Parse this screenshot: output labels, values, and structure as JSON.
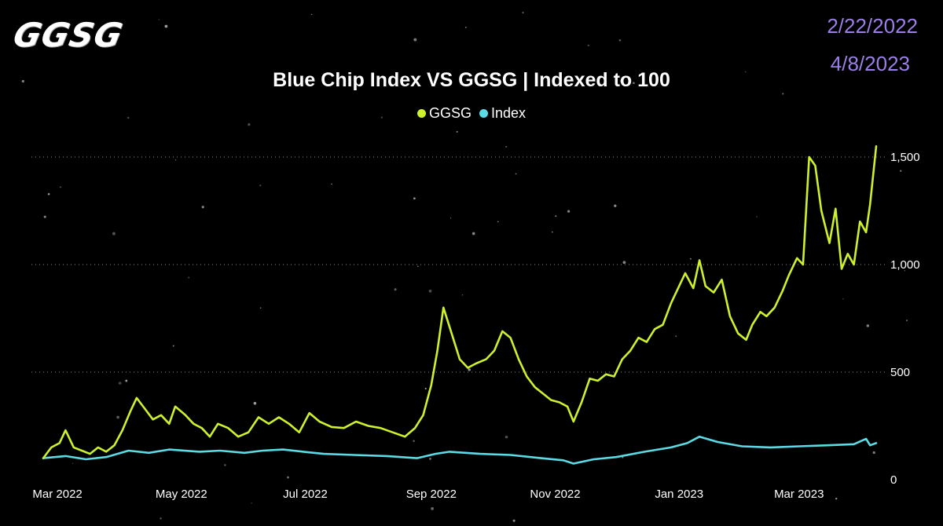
{
  "logo": {
    "text": "GGSG"
  },
  "date_range": {
    "start": "2/22/2022",
    "end": "4/8/2023"
  },
  "colors": {
    "ggsg": "#cdf22b",
    "index": "#5bdbe5",
    "dates": "#9b7fe6",
    "background": "#000000",
    "grid": "#8a8a8a"
  },
  "chart_data": {
    "type": "line",
    "title": "Blue Chip Index VS GGSG | Indexed to 100",
    "xlabel": "",
    "ylabel": "",
    "ylim": [
      0,
      1500
    ],
    "y_ticks": [
      0,
      500,
      1000,
      1500
    ],
    "y_tick_labels": [
      "0",
      "500",
      "1,000",
      "1,500"
    ],
    "x_ticks": [
      "2022-03-01",
      "2022-05-01",
      "2022-07-01",
      "2022-09-01",
      "2022-11-01",
      "2023-01-01",
      "2023-03-01"
    ],
    "x_tick_labels": [
      "Mar 2022",
      "May 2022",
      "Jul 2022",
      "Sep 2022",
      "Nov 2022",
      "Jan 2023",
      "Mar 2023"
    ],
    "x_range": [
      "2022-02-22",
      "2023-04-08"
    ],
    "grid": "horizontal dotted",
    "legend_position": "top-center",
    "series": [
      {
        "name": "GGSG",
        "color": "#cdf22b",
        "points": [
          [
            "2022-02-22",
            100
          ],
          [
            "2022-02-26",
            150
          ],
          [
            "2022-03-02",
            170
          ],
          [
            "2022-03-05",
            230
          ],
          [
            "2022-03-09",
            150
          ],
          [
            "2022-03-13",
            135
          ],
          [
            "2022-03-17",
            120
          ],
          [
            "2022-03-21",
            150
          ],
          [
            "2022-03-25",
            130
          ],
          [
            "2022-03-29",
            160
          ],
          [
            "2022-04-02",
            230
          ],
          [
            "2022-04-06",
            320
          ],
          [
            "2022-04-09",
            380
          ],
          [
            "2022-04-13",
            330
          ],
          [
            "2022-04-17",
            280
          ],
          [
            "2022-04-21",
            300
          ],
          [
            "2022-04-25",
            260
          ],
          [
            "2022-04-28",
            340
          ],
          [
            "2022-05-03",
            300
          ],
          [
            "2022-05-07",
            260
          ],
          [
            "2022-05-11",
            240
          ],
          [
            "2022-05-15",
            200
          ],
          [
            "2022-05-19",
            260
          ],
          [
            "2022-05-24",
            240
          ],
          [
            "2022-05-29",
            200
          ],
          [
            "2022-06-03",
            220
          ],
          [
            "2022-06-08",
            290
          ],
          [
            "2022-06-13",
            260
          ],
          [
            "2022-06-18",
            290
          ],
          [
            "2022-06-23",
            260
          ],
          [
            "2022-06-28",
            220
          ],
          [
            "2022-07-03",
            310
          ],
          [
            "2022-07-08",
            270
          ],
          [
            "2022-07-14",
            245
          ],
          [
            "2022-07-20",
            240
          ],
          [
            "2022-07-26",
            270
          ],
          [
            "2022-08-01",
            250
          ],
          [
            "2022-08-07",
            240
          ],
          [
            "2022-08-13",
            220
          ],
          [
            "2022-08-19",
            200
          ],
          [
            "2022-08-24",
            240
          ],
          [
            "2022-08-28",
            300
          ],
          [
            "2022-09-01",
            440
          ],
          [
            "2022-09-04",
            600
          ],
          [
            "2022-09-07",
            800
          ],
          [
            "2022-09-11",
            680
          ],
          [
            "2022-09-15",
            560
          ],
          [
            "2022-09-19",
            520
          ],
          [
            "2022-09-23",
            540
          ],
          [
            "2022-09-28",
            560
          ],
          [
            "2022-10-02",
            600
          ],
          [
            "2022-10-06",
            690
          ],
          [
            "2022-10-10",
            660
          ],
          [
            "2022-10-14",
            560
          ],
          [
            "2022-10-18",
            480
          ],
          [
            "2022-10-22",
            430
          ],
          [
            "2022-10-26",
            400
          ],
          [
            "2022-10-30",
            370
          ],
          [
            "2022-11-03",
            360
          ],
          [
            "2022-11-07",
            340
          ],
          [
            "2022-11-10",
            270
          ],
          [
            "2022-11-14",
            360
          ],
          [
            "2022-11-18",
            470
          ],
          [
            "2022-11-22",
            460
          ],
          [
            "2022-11-26",
            490
          ],
          [
            "2022-11-30",
            480
          ],
          [
            "2022-12-04",
            560
          ],
          [
            "2022-12-08",
            600
          ],
          [
            "2022-12-12",
            660
          ],
          [
            "2022-12-16",
            640
          ],
          [
            "2022-12-20",
            700
          ],
          [
            "2022-12-24",
            720
          ],
          [
            "2022-12-28",
            820
          ],
          [
            "2023-01-01",
            900
          ],
          [
            "2023-01-04",
            960
          ],
          [
            "2023-01-08",
            890
          ],
          [
            "2023-01-11",
            1020
          ],
          [
            "2023-01-14",
            900
          ],
          [
            "2023-01-18",
            870
          ],
          [
            "2023-01-22",
            930
          ],
          [
            "2023-01-26",
            760
          ],
          [
            "2023-01-30",
            680
          ],
          [
            "2023-02-03",
            650
          ],
          [
            "2023-02-06",
            720
          ],
          [
            "2023-02-10",
            780
          ],
          [
            "2023-02-13",
            760
          ],
          [
            "2023-02-17",
            800
          ],
          [
            "2023-02-21",
            880
          ],
          [
            "2023-02-24",
            950
          ],
          [
            "2023-02-28",
            1030
          ],
          [
            "2023-03-03",
            1000
          ],
          [
            "2023-03-06",
            1500
          ],
          [
            "2023-03-09",
            1460
          ],
          [
            "2023-03-12",
            1250
          ],
          [
            "2023-03-16",
            1100
          ],
          [
            "2023-03-19",
            1260
          ],
          [
            "2023-03-22",
            980
          ],
          [
            "2023-03-25",
            1050
          ],
          [
            "2023-03-28",
            1000
          ],
          [
            "2023-03-31",
            1200
          ],
          [
            "2023-04-03",
            1150
          ],
          [
            "2023-04-05",
            1280
          ],
          [
            "2023-04-08",
            1550
          ]
        ]
      },
      {
        "name": "Index",
        "color": "#5bdbe5",
        "points": [
          [
            "2022-02-22",
            100
          ],
          [
            "2022-03-05",
            110
          ],
          [
            "2022-03-15",
            95
          ],
          [
            "2022-03-25",
            105
          ],
          [
            "2022-04-05",
            135
          ],
          [
            "2022-04-15",
            125
          ],
          [
            "2022-04-25",
            140
          ],
          [
            "2022-05-10",
            130
          ],
          [
            "2022-05-20",
            135
          ],
          [
            "2022-06-01",
            125
          ],
          [
            "2022-06-10",
            135
          ],
          [
            "2022-06-20",
            140
          ],
          [
            "2022-06-30",
            130
          ],
          [
            "2022-07-10",
            120
          ],
          [
            "2022-07-25",
            115
          ],
          [
            "2022-08-10",
            110
          ],
          [
            "2022-08-25",
            100
          ],
          [
            "2022-09-03",
            120
          ],
          [
            "2022-09-10",
            130
          ],
          [
            "2022-09-25",
            120
          ],
          [
            "2022-10-10",
            115
          ],
          [
            "2022-10-25",
            100
          ],
          [
            "2022-11-05",
            90
          ],
          [
            "2022-11-10",
            75
          ],
          [
            "2022-11-20",
            95
          ],
          [
            "2022-12-01",
            105
          ],
          [
            "2022-12-15",
            130
          ],
          [
            "2022-12-28",
            150
          ],
          [
            "2023-01-05",
            170
          ],
          [
            "2023-01-11",
            200
          ],
          [
            "2023-01-20",
            175
          ],
          [
            "2023-02-01",
            155
          ],
          [
            "2023-02-15",
            150
          ],
          [
            "2023-03-01",
            155
          ],
          [
            "2023-03-15",
            160
          ],
          [
            "2023-03-28",
            165
          ],
          [
            "2023-04-03",
            190
          ],
          [
            "2023-04-05",
            160
          ],
          [
            "2023-04-08",
            170
          ]
        ]
      }
    ]
  }
}
